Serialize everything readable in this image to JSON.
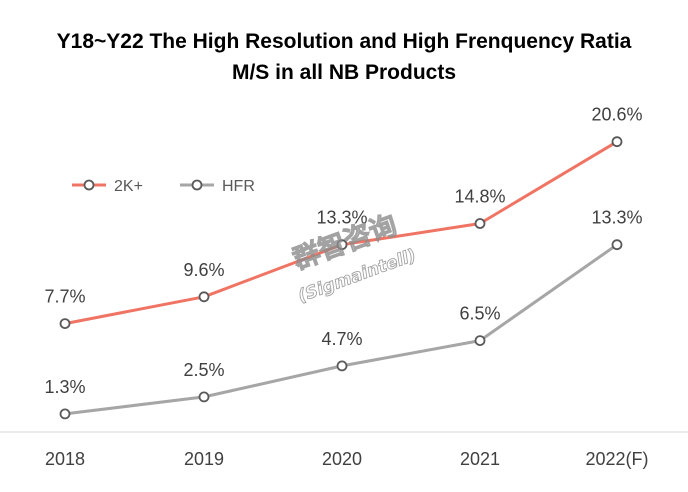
{
  "chart_title": {
    "line1": "Y18~Y22 The High Resolution and High Frenquency Ratia",
    "line2": "M/S in all NB Products"
  },
  "watermark": {
    "line1": "群智咨询",
    "line2": "(Sigmaintell)"
  },
  "chart_data": {
    "type": "line",
    "categories": [
      "2018",
      "2019",
      "2020",
      "2021",
      "2022(F)"
    ],
    "series": [
      {
        "name": "2K+",
        "color": "#F07464",
        "values": [
          7.7,
          9.6,
          13.3,
          14.8,
          20.6
        ],
        "labels": [
          "7.7%",
          "9.6%",
          "13.3%",
          "14.8%",
          "20.6%"
        ]
      },
      {
        "name": "HFR",
        "color": "#A6A6A6",
        "values": [
          1.3,
          2.5,
          4.7,
          6.5,
          13.3
        ],
        "labels": [
          "1.3%",
          "2.5%",
          "4.7%",
          "6.5%",
          "13.3%"
        ]
      }
    ],
    "ylim": [
      0,
      24
    ],
    "legend_position": "top-left",
    "grid": false
  }
}
